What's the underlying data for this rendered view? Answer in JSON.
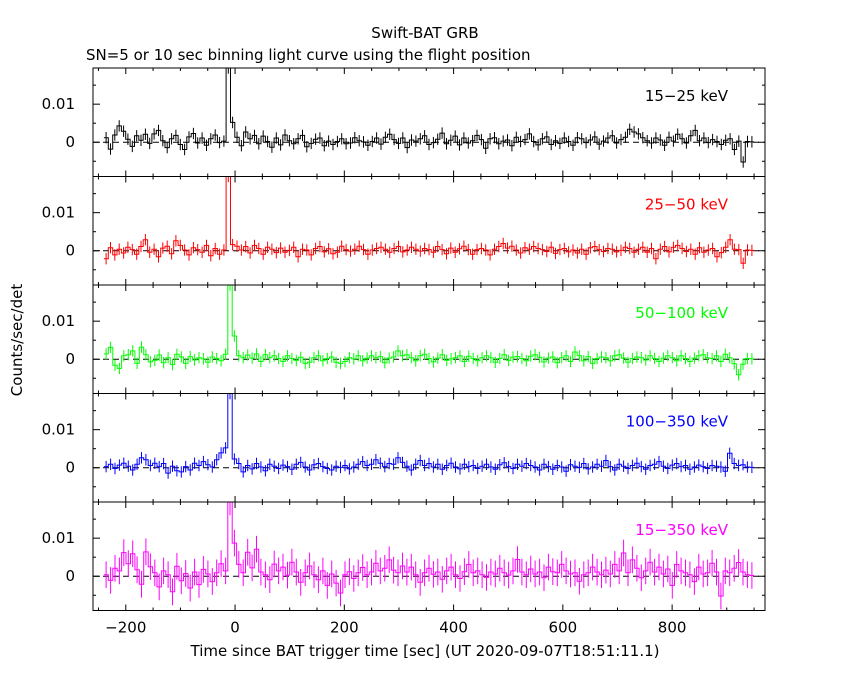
{
  "chart_data": {
    "type": "line",
    "title": "Swift-BAT GRB",
    "subtitle": "SN=5 or 10 sec binning light curve using the flight position",
    "xlabel": "Time since BAT trigger time [sec] (UT 2020-09-07T18:51:11.1)",
    "ylabel": "Counts/sec/det",
    "xlim": [
      -260,
      970
    ],
    "x_ticks": [
      "−200",
      "0",
      "200",
      "400",
      "600",
      "800"
    ],
    "x_tick_values": [
      -200,
      0,
      200,
      400,
      600,
      800
    ],
    "y_ticks": [
      "0.01",
      "0"
    ],
    "y_tick_values": [
      0.01,
      0
    ],
    "panels": [
      {
        "name": "15−25 keV",
        "color": "#000000",
        "ylim": [
          -0.009,
          0.0195
        ],
        "values": [
          0.0012,
          -0.0018,
          0.0019,
          0.0043,
          0.0029,
          0.0008,
          -0.0011,
          0.0017,
          0.0005,
          0.0021,
          -0.0003,
          0.0022,
          0.0031,
          0.0004,
          -0.0014,
          0.0009,
          0.0018,
          -0.0006,
          -0.0019,
          0.0014,
          0.0023,
          -0.0002,
          0.0011,
          -0.0008,
          0.0009,
          0.0019,
          -0.0001,
          0.0003,
          0.0195,
          0.0052,
          0.0013,
          -0.0009,
          0.0027,
          0.0009,
          0.0018,
          -0.0004,
          0.0016,
          0.0002,
          -0.0013,
          0.0011,
          -0.0007,
          0.0019,
          0.0004,
          -0.0004,
          0.0009,
          0.0018,
          -0.0012,
          -0.0003,
          0.0008,
          0.0011,
          -0.0009,
          0.0003,
          -0.0006,
          0.0002,
          0.0009,
          -0.0004,
          -0.0002,
          0.0012,
          0.0004,
          0.0001,
          -0.0008,
          0.0002,
          0.0011,
          -0.0005,
          0.0013,
          0.0021,
          0.0007,
          -0.0003,
          0.0011,
          -0.0014,
          0.0006,
          0.0003,
          0.0009,
          0.0017,
          -0.0006,
          -0.0001,
          0.0008,
          0.0024,
          -0.0004,
          0.0005,
          0.0016,
          -0.0007,
          0.0011,
          -0.0002,
          0.0004,
          0.0018,
          0.0007,
          -0.0016,
          0.0009,
          0.0012,
          -0.0004,
          0.0003,
          0.0006,
          -0.0009,
          0.0013,
          0.0002,
          0.0007,
          0.0022,
          0.0002,
          -0.0007,
          0.0009,
          0.0014,
          -0.0006,
          0.0004,
          -0.0003,
          0.0011,
          0.0002,
          -0.0008,
          0.0012,
          0.0009,
          -0.0001,
          0.0006,
          0.0014,
          -0.0005,
          0.0003,
          0.0011,
          0.0017,
          -0.0002,
          0.0007,
          0.0013,
          0.0034,
          0.0027,
          0.0022,
          0.0012,
          0.0004,
          -0.0002,
          0.0011,
          0.0006,
          -0.0008,
          0.0013,
          0.0003,
          0.0021,
          0.0009,
          -0.0002,
          0.0017,
          0.0031,
          0.0004,
          0.0011,
          -0.0001,
          0.0007,
          0.0002,
          -0.0006,
          0.0005,
          0.0009,
          -0.0019,
          0.0003,
          -0.0052,
          0.0002,
          0.0001
        ]
      },
      {
        "name": "25−50 keV",
        "color": "#ff0000",
        "ylim": [
          -0.009,
          0.0195
        ],
        "values": [
          -0.0021,
          0.0008,
          -0.0011,
          0.0004,
          -0.0006,
          0.0009,
          0.0003,
          -0.0009,
          0.0011,
          0.0029,
          -0.0004,
          0.0004,
          -0.0016,
          0.0007,
          0.0012,
          -0.0008,
          0.0026,
          0.0014,
          0.0002,
          -0.0011,
          0.0008,
          0.0003,
          -0.0004,
          0.0014,
          -0.0013,
          0.0006,
          -0.0009,
          0.0002,
          0.0195,
          0.0016,
          0.0012,
          0.0002,
          0.0011,
          -0.0006,
          0.0014,
          0.0006,
          -0.0009,
          0.0009,
          0.0004,
          -0.0005,
          0.0007,
          -0.0004,
          0.0001,
          0.0009,
          -0.0016,
          0.0004,
          0.0002,
          -0.0011,
          0.0006,
          0.0011,
          -0.0003,
          0.0005,
          -0.0008,
          -0.0004,
          0.0012,
          0.0003,
          -0.0001,
          0.0004,
          0.0012,
          0.0003,
          -0.0009,
          0.0002,
          0.0006,
          0.0009,
          0.0004,
          -0.0004,
          0.0006,
          0.0011,
          -0.0003,
          0.0002,
          0.0009,
          0.0004,
          -0.0001,
          0.0006,
          0.0003,
          -0.0004,
          0.0011,
          0.0003,
          -0.0008,
          0.0007,
          -0.0004,
          0.0005,
          0.0012,
          0.0003,
          -0.0009,
          0.0003,
          0.0006,
          0.0002,
          -0.0011,
          0.0004,
          0.0011,
          0.0019,
          0.0007,
          0.0012,
          0.0002,
          -0.0006,
          0.0008,
          0.0004,
          0.0011,
          0.0006,
          0.0003,
          -0.0002,
          0.0009,
          -0.0007,
          0.0003,
          0.0006,
          -0.0003,
          0.0002,
          -0.0006,
          0.0004,
          -0.0009,
          0.0008,
          0.0011,
          0.0003,
          -0.0002,
          0.0006,
          0.0004,
          -0.0003,
          0.0001,
          0.0009,
          0.0006,
          -0.0004,
          0.0004,
          0.0009,
          -0.0004,
          0.0006,
          -0.0021,
          0.0004,
          0.0011,
          -0.0003,
          0.0009,
          0.0014,
          0.0006,
          -0.0002,
          0.0004,
          -0.0009,
          0.0008,
          -0.0004,
          0.0002,
          0.0006,
          -0.0016,
          -0.0005,
          0.0009,
          0.0029,
          0.0004,
          0.0003,
          -0.0033,
          0.0002,
          0.0001
        ]
      },
      {
        "name": "50−100 keV",
        "color": "#00ff00",
        "ylim": [
          -0.009,
          0.0195
        ],
        "values": [
          0.0014,
          0.0031,
          -0.0016,
          -0.0024,
          0.0009,
          0.0012,
          0.0022,
          -0.0011,
          0.0032,
          0.0012,
          -0.0007,
          -0.0003,
          0.0011,
          -0.0009,
          0.0004,
          -0.0014,
          0.0013,
          0.0006,
          -0.0011,
          0.0007,
          -0.0002,
          0.0004,
          0.0001,
          -0.0008,
          0.0006,
          0.0002,
          -0.0004,
          0.0013,
          0.0195,
          0.0061,
          0.0009,
          0.0004,
          0.0011,
          0.0003,
          0.0014,
          -0.0006,
          0.0012,
          0.0004,
          0.0009,
          0.0002,
          -0.0006,
          0.0009,
          0.0002,
          -0.0003,
          0.0005,
          -0.0011,
          -0.0008,
          0.0004,
          0.0009,
          -0.0004,
          0.0002,
          0.0006,
          -0.0008,
          -0.0011,
          -0.0006,
          0.0004,
          0.0001,
          0.0009,
          -0.0004,
          0.0003,
          0.0009,
          0.0004,
          0.0007,
          -0.0009,
          0.0003,
          0.0006,
          0.0022,
          0.0009,
          0.0012,
          0.0004,
          -0.0004,
          0.0009,
          0.0013,
          0.0002,
          -0.0007,
          0.0003,
          0.0012,
          -0.0003,
          0.0001,
          0.0004,
          0.0009,
          -0.0006,
          0.0008,
          0.0002,
          -0.0004,
          0.0004,
          0.0009,
          0.0004,
          -0.0008,
          0.0002,
          0.0012,
          -0.0003,
          0.0006,
          0.0007,
          0.0002,
          -0.0004,
          0.0008,
          0.0012,
          0.0005,
          -0.0007,
          0.0003,
          0.0006,
          -0.0009,
          0.0004,
          0.0009,
          -0.0006,
          0.0019,
          0.0009,
          -0.0004,
          0.0007,
          -0.0011,
          0.0002,
          0.0006,
          0.0004,
          -0.0004,
          0.0009,
          0.0012,
          0.0003,
          -0.0008,
          0.0002,
          0.0006,
          0.0004,
          -0.0002,
          0.0009,
          0.0002,
          -0.0006,
          0.0003,
          0.0009,
          0.0004,
          -0.0004,
          0.0009,
          0.0002,
          -0.0006,
          0.0003,
          0.0009,
          0.0012,
          0.0004,
          0.0002,
          0.0009,
          -0.0006,
          0.0013,
          0.0004,
          -0.0012,
          -0.0041,
          -0.0013,
          0.0002,
          0.0001
        ]
      },
      {
        "name": "100−350 keV",
        "color": "#0000ff",
        "ylim": [
          -0.009,
          0.0195
        ],
        "values": [
          0.0003,
          0.0009,
          -0.0002,
          0.0007,
          0.0012,
          0.0004,
          -0.0006,
          0.0009,
          0.0026,
          0.0021,
          0.0006,
          0.0012,
          0.0003,
          0.0011,
          -0.0014,
          0.0004,
          -0.0008,
          -0.0011,
          0.0003,
          -0.0006,
          0.0012,
          0.0006,
          0.0016,
          0.0008,
          0.0002,
          0.0021,
          0.0039,
          0.0052,
          0.0195,
          0.0023,
          0.0011,
          -0.0011,
          0.0006,
          -0.0003,
          0.0011,
          0.0002,
          -0.0008,
          0.0009,
          0.0004,
          -0.0002,
          0.0007,
          0.0003,
          -0.0004,
          0.0009,
          0.0014,
          0.0002,
          -0.0006,
          0.0008,
          0.0011,
          0.0003,
          -0.0002,
          -0.0006,
          0.0004,
          0.0001,
          0.0006,
          -0.0003,
          0.0002,
          0.0009,
          0.0016,
          0.0006,
          0.0009,
          0.0021,
          0.0012,
          0.0003,
          0.0011,
          0.0009,
          0.0026,
          0.0014,
          0.0004,
          -0.0006,
          0.0009,
          0.0019,
          0.0006,
          0.0011,
          0.0002,
          0.0009,
          -0.0004,
          0.0006,
          0.0012,
          0.0002,
          -0.0003,
          0.0009,
          0.0003,
          0.0006,
          -0.0002,
          0.0004,
          0.0009,
          0.0002,
          -0.0004,
          0.0008,
          0.0013,
          0.0003,
          -0.0002,
          0.0009,
          0.0004,
          0.0011,
          0.0006,
          0.0002,
          -0.0006,
          0.0009,
          0.0003,
          -0.0004,
          0.0006,
          0.0002,
          -0.0009,
          0.0008,
          0.0004,
          0.0001,
          0.0011,
          -0.0003,
          0.0002,
          0.0009,
          0.0004,
          0.0019,
          0.0003,
          -0.0006,
          0.0009,
          0.0004,
          -0.0002,
          0.0006,
          0.0012,
          0.0003,
          -0.0004,
          0.0006,
          0.0009,
          0.0016,
          0.0004,
          -0.0002,
          0.0007,
          0.0011,
          0.0003,
          0.0006,
          -0.0004,
          0.0002,
          0.0007,
          0.0003,
          -0.0002,
          0.0006,
          0.0004,
          0.0002,
          -0.0009,
          0.0038,
          0.0011,
          0.0006,
          0.0008,
          0.0002,
          0.0001
        ]
      },
      {
        "name": "15−350 keV",
        "color": "#ff00ff",
        "ylim": [
          -0.009,
          0.0195
        ],
        "values": [
          0.0004,
          -0.0011,
          0.0021,
          0.0014,
          0.0062,
          0.0033,
          0.0059,
          0.0017,
          -0.0021,
          0.0064,
          0.0025,
          0.0009,
          -0.0028,
          0.0014,
          0.0004,
          -0.0041,
          0.0026,
          -0.0012,
          0.0007,
          -0.0031,
          0.0011,
          -0.0022,
          0.0018,
          0.0006,
          -0.0014,
          0.0009,
          0.0033,
          0.0014,
          0.0195,
          0.0087,
          0.0031,
          0.0009,
          0.0063,
          0.0022,
          0.0071,
          0.0011,
          0.0004,
          -0.0009,
          0.0032,
          0.0014,
          0.0024,
          0.0003,
          0.0037,
          0.0011,
          -0.0016,
          0.0009,
          0.0027,
          0.0004,
          -0.0009,
          0.0014,
          -0.0024,
          0.0006,
          -0.0018,
          -0.0044,
          0.0004,
          0.0012,
          -0.0006,
          0.0009,
          0.0023,
          0.0004,
          0.0011,
          0.0034,
          0.0014,
          0.0021,
          0.0043,
          0.0016,
          0.0009,
          0.0027,
          0.0011,
          0.0024,
          0.0004,
          -0.0016,
          0.0009,
          0.0021,
          0.0005,
          0.0011,
          -0.0008,
          0.0014,
          0.0024,
          0.0004,
          -0.0006,
          0.0012,
          0.0031,
          0.0009,
          0.0014,
          0.0004,
          -0.0003,
          0.0011,
          0.0006,
          0.0021,
          0.0009,
          0.0003,
          0.0014,
          0.0044,
          0.0011,
          0.0004,
          0.0019,
          0.0006,
          0.0011,
          -0.0004,
          0.0024,
          0.0012,
          0.0009,
          0.0031,
          0.0014,
          0.0006,
          0.0009,
          -0.0013,
          0.0004,
          0.0009,
          0.0024,
          0.0011,
          0.0004,
          0.0016,
          0.0006,
          0.0031,
          0.0014,
          0.0061,
          0.0009,
          0.0043,
          0.0021,
          -0.0004,
          0.0014,
          0.0037,
          0.0011,
          0.0024,
          0.0006,
          0.0019,
          -0.0024,
          0.0031,
          0.0014,
          0.0009,
          0.0004,
          -0.0014,
          0.0024,
          0.0006,
          0.0009,
          0.0034,
          0.0011,
          -0.0052,
          0.0014,
          0.0009,
          0.0021,
          0.0036,
          0.0011,
          0.0004,
          0.0002
        ]
      }
    ]
  }
}
